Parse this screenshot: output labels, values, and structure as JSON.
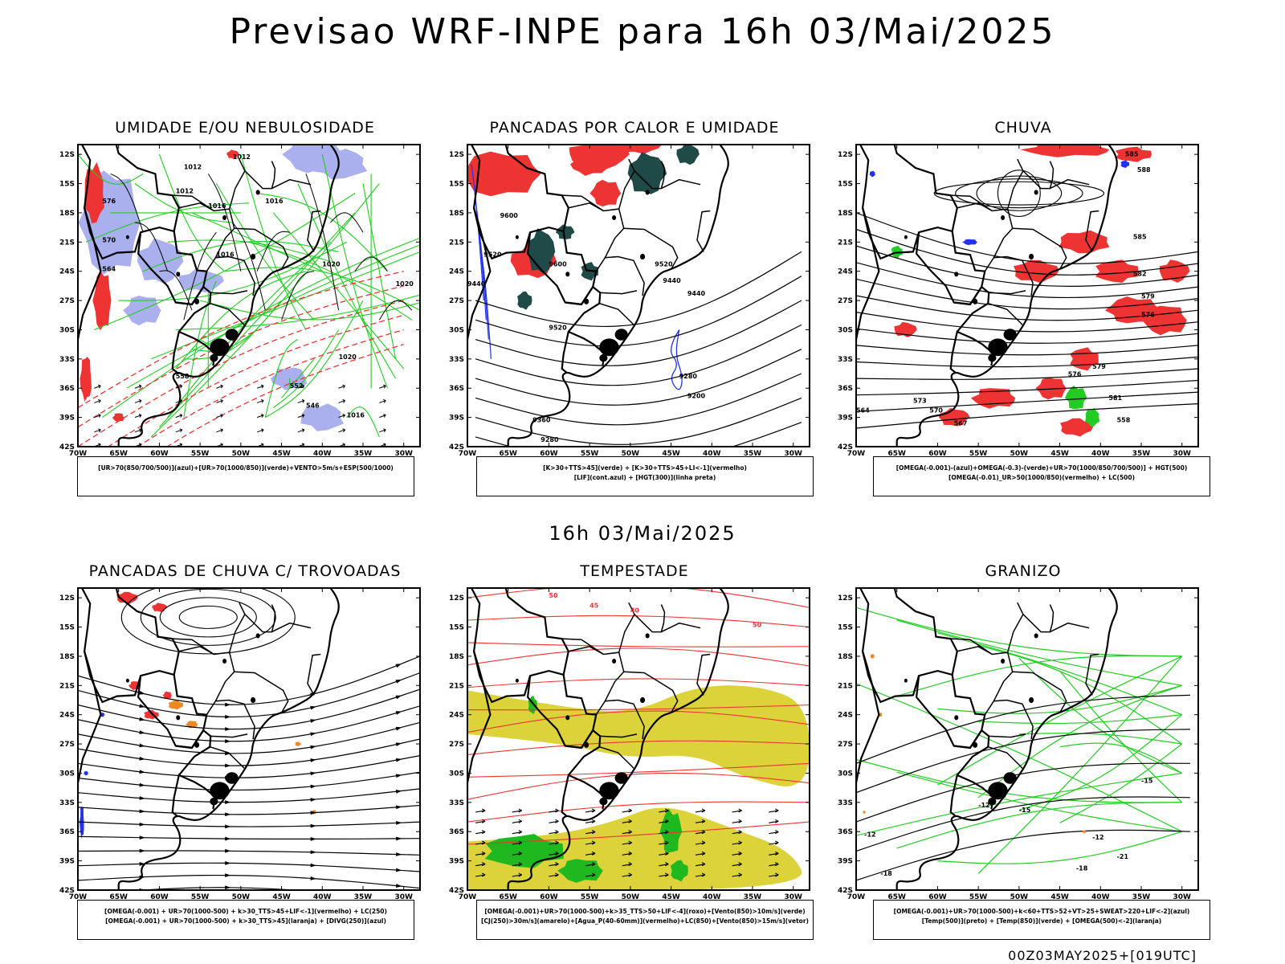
{
  "main_title": "Previsao WRF-INPE  para 16h 03/Mai/2025",
  "mid_date": "16h 03/Mai/2025",
  "footer_stamp": "00Z03MAY2025+[019UTC]",
  "axes": {
    "lat_labels": [
      "12S",
      "15S",
      "18S",
      "21S",
      "24S",
      "27S",
      "30S",
      "33S",
      "36S",
      "39S",
      "42S"
    ],
    "lon_labels": [
      "70W",
      "65W",
      "60W",
      "55W",
      "50W",
      "45W",
      "40W",
      "35W",
      "30W"
    ]
  },
  "colors": {
    "green": "#22cc22",
    "red": "#ee3333",
    "blue": "#2233ee",
    "lavender": "#aab0ee",
    "darkteal": "#1f4a48",
    "yellow": "#dcd33a",
    "orange": "#ee8822",
    "black": "#000000"
  },
  "panels": [
    {
      "id": "umidade",
      "title": "UMIDADE E/OU NEBULOSIDADE",
      "legend": [
        "[UR>70(850/700/500)](azul)+[UR>70(1000/850)](verde)+VENTO>5m/s+ESP(500/1000)"
      ],
      "contour_labels": [
        "1012",
        "1012",
        "1012",
        "1016",
        "1016",
        "1016",
        "1020",
        "1020",
        "1020",
        "1016",
        "576",
        "570",
        "564",
        "558",
        "552",
        "546"
      ]
    },
    {
      "id": "pancadas_calor",
      "title": "PANCADAS POR CALOR E UMIDADE",
      "legend": [
        "[K>30+TTS>45](verde)  +  [K>30+TTS>45+LI<-1](vermelho)",
        "[LIF](cont.azul)  +  [HGT(300)](linha preta)"
      ],
      "contour_labels": [
        "9600",
        "9520",
        "9440",
        "9600",
        "9520",
        "9440",
        "9520",
        "9440",
        "9280",
        "9200",
        "9360",
        "9280"
      ]
    },
    {
      "id": "chuva",
      "title": "CHUVA",
      "legend": [
        "[OMEGA(-0.001)-(azul)+OMEGA(-0.3)-(verde)+UR>70(1000/850/700/500)]  +  HGT(500)",
        "[OMEGA(-0.01)_UR>50(1000/850)(vermelho)  +  LC(500)"
      ],
      "contour_labels": [
        "585",
        "588",
        "585",
        "582",
        "579",
        "576",
        "573",
        "570",
        "567",
        "564",
        "579",
        "576",
        "581",
        "558"
      ]
    },
    {
      "id": "pancadas_trovoadas",
      "title": "PANCADAS DE CHUVA C/ TROVOADAS",
      "legend": [
        "[OMEGA(-0.001)  +  UR>70(1000-500)  +  k>30_TTS>45+LIF<-1](vermelho)  +  LC(250)",
        "[OMEGA(-0.001)  +  UR>70(1000-500)  +  k>30_TTS>45](laranja)  +  [DIVG(250)](azul)"
      ],
      "contour_labels": []
    },
    {
      "id": "tempestade",
      "title": "TEMPESTADE",
      "legend": [
        "[OMEGA(-0.001)+UR>70(1000-500)+k>35_TTS>50+LIF<-4](roxo)+[Vento(850)>10m/s](verde)",
        "[CJ(250)>30m/s](amarelo)+[Agua_P(40-60mm)](vermelho)+LC(850)+[Vento(850)>15m/s](vetor)"
      ],
      "contour_labels": [
        "50",
        "45",
        "40",
        "50"
      ]
    },
    {
      "id": "granizo",
      "title": "GRANIZO",
      "legend": [
        "[OMEGA(-0.001)+UR>70(1000-500)+k<60+TTS>52+VT>25+SWEAT>220+LIF<-2](azul)",
        "[Temp(500)](preto)  +  [Temp(850)](verde)  +  [OMEGA(500)<-2](laranja)"
      ],
      "contour_labels": [
        "-12",
        "-15",
        "-18",
        "-21",
        "-12",
        "-15",
        "-18",
        "-15",
        "-12"
      ]
    }
  ]
}
